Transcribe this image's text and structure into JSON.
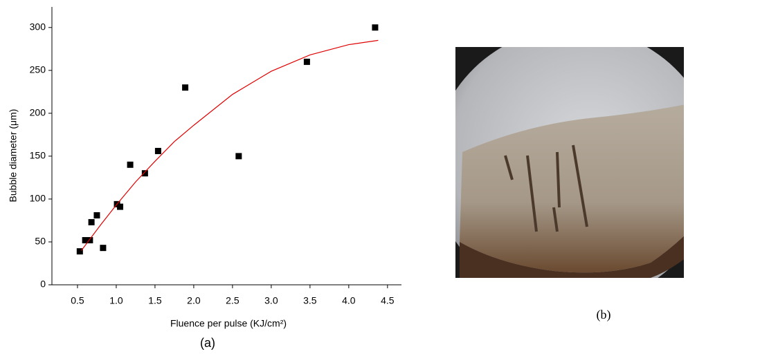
{
  "chart_data": {
    "type": "scatter",
    "xlabel": "Fluence per pulse (KJ/cm²)",
    "ylabel": "Bubble diameter (μm)",
    "caption": "(a)",
    "xlim": [
      0.17,
      4.68
    ],
    "ylim": [
      0,
      324
    ],
    "xticks": [
      0.5,
      {
        "value": 1,
        "label": "1.0"
      },
      1.5,
      {
        "value": 2,
        "label": "2.0"
      },
      2.5,
      {
        "value": 3,
        "label": "3.0"
      },
      3.5,
      {
        "value": 4,
        "label": "4.0"
      },
      4.5
    ],
    "yticks": [
      0,
      50,
      100,
      150,
      200,
      250,
      300
    ],
    "series": [
      {
        "color": "#000000",
        "mode": "markers",
        "x": [
          0.53,
          0.6,
          0.66,
          0.68,
          0.75,
          0.83,
          1.01,
          1.05,
          1.18,
          1.37,
          1.54,
          1.89,
          2.58,
          3.46,
          4.34
        ],
        "values": [
          39,
          52,
          52,
          73,
          81,
          43,
          94,
          91,
          140,
          130,
          156,
          230,
          150,
          260,
          300
        ]
      },
      {
        "color": "#e00000",
        "mode": "line",
        "x": [
          0.55,
          0.8,
          1.0,
          1.25,
          1.5,
          1.75,
          2.0,
          2.5,
          3.0,
          3.5,
          4.0,
          4.38
        ],
        "values": [
          40,
          70,
          93,
          120,
          144,
          167,
          186,
          222,
          249,
          268,
          280,
          285
        ]
      }
    ]
  },
  "figure_b": {
    "caption": "(b)"
  }
}
